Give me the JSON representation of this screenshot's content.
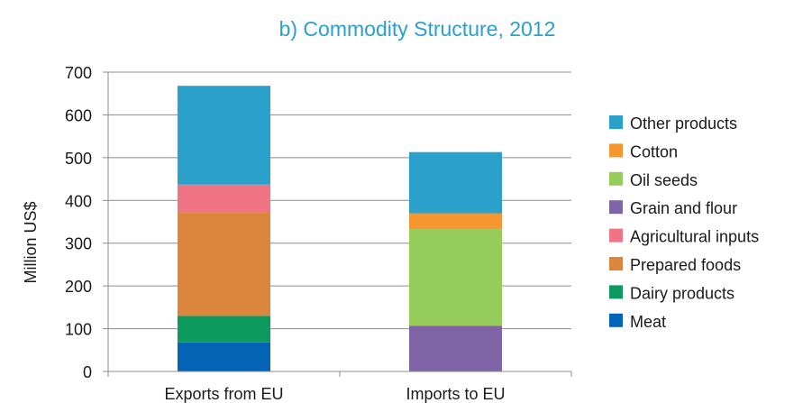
{
  "chart_data": {
    "type": "bar",
    "stacked": true,
    "title": "b) Commodity Structure, 2012",
    "xlabel": "",
    "ylabel": "Million US$",
    "ylim": [
      0,
      700
    ],
    "yticks": [
      0,
      100,
      200,
      300,
      400,
      500,
      600,
      700
    ],
    "grid": true,
    "legend_position": "right",
    "categories": [
      "Exports from EU",
      "Imports to EU"
    ],
    "series": [
      {
        "name": "Meat",
        "color": "#0563b5",
        "values": [
          68,
          0
        ]
      },
      {
        "name": "Dairy products",
        "color": "#0d9a5e",
        "values": [
          62,
          0
        ]
      },
      {
        "name": "Prepared foods",
        "color": "#dc853c",
        "values": [
          242,
          0
        ]
      },
      {
        "name": "Agricultural inputs",
        "color": "#f07484",
        "values": [
          65,
          0
        ]
      },
      {
        "name": "Grain and flour",
        "color": "#8064a8",
        "values": [
          0,
          107
        ]
      },
      {
        "name": "Oil seeds",
        "color": "#96cc5c",
        "values": [
          0,
          226
        ]
      },
      {
        "name": "Cotton",
        "color": "#f5962e",
        "values": [
          0,
          37
        ]
      },
      {
        "name": "Other products",
        "color": "#2ba0cb",
        "values": [
          231,
          143
        ]
      }
    ]
  }
}
